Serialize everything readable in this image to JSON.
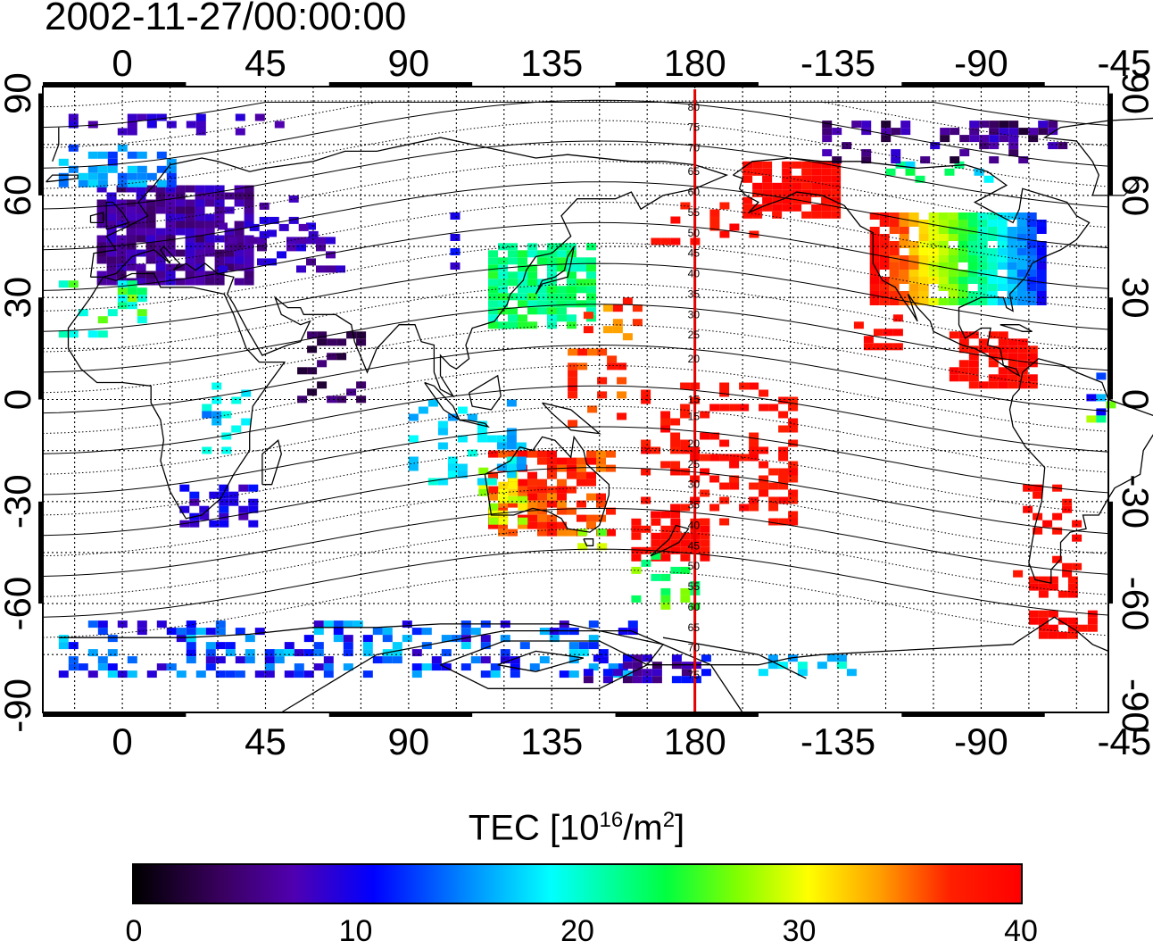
{
  "title": "2002-11-27/00:00:00",
  "lon_ticks": [
    "0",
    "45",
    "90",
    "135",
    "180",
    "-135",
    "-90",
    "-45"
  ],
  "lat_ticks": [
    "90",
    "60",
    "30",
    "0",
    "-30",
    "-60",
    "-90"
  ],
  "lon_range": [
    -25,
    310
  ],
  "lat_range": [
    -92,
    92
  ],
  "dip_labels_north": [
    "80",
    "75",
    "70",
    "65",
    "60",
    "55",
    "50",
    "45",
    "40",
    "35",
    "30",
    "25",
    "20",
    "15"
  ],
  "dip_labels_south": [
    "15",
    "20",
    "25",
    "30",
    "35",
    "40",
    "45",
    "50",
    "55",
    "60",
    "65",
    "70",
    "75"
  ],
  "colorbar": {
    "label_main": "TEC  [10",
    "label_exp": "16",
    "label_mid": "/m",
    "label_exp2": "2",
    "label_end": "]",
    "ticks": [
      "0",
      "10",
      "20",
      "30",
      "40"
    ],
    "range": [
      0,
      40
    ]
  },
  "colors": {
    "meridian": "#e00000",
    "frame": "#000000"
  },
  "chart_data": {
    "type": "heatmap",
    "title": "2002-11-27/00:00:00",
    "xlabel": "",
    "ylabel": "",
    "x_ticks": [
      "0",
      "45",
      "90",
      "135",
      "180",
      "-135",
      "-90",
      "-45"
    ],
    "y_ticks": [
      "90",
      "60",
      "30",
      "0",
      "-30",
      "-60",
      "-90"
    ],
    "value_label": "TEC [10^16/m^2]",
    "value_range": [
      0,
      40
    ],
    "regions": [
      {
        "lon": [
          -10,
          40
        ],
        "lat": [
          35,
          65
        ],
        "tec": 6
      },
      {
        "lon": [
          -125,
          -70
        ],
        "lat": [
          30,
          55
        ],
        "tec": 30
      },
      {
        "lon": [
          -125,
          -100
        ],
        "lat": [
          35,
          55
        ],
        "tec": 38
      },
      {
        "lon": [
          -95,
          -70
        ],
        "lat": [
          35,
          48
        ],
        "tec": 10
      },
      {
        "lon": [
          -165,
          -125
        ],
        "lat": [
          55,
          70
        ],
        "tec": 40
      },
      {
        "lon": [
          120,
          145
        ],
        "lat": [
          28,
          45
        ],
        "tec": 23
      },
      {
        "lon": [
          115,
          150
        ],
        "lat": [
          -40,
          -15
        ],
        "tec": 38
      },
      {
        "lon": [
          165,
          180
        ],
        "lat": [
          -47,
          -35
        ],
        "tec": 39
      },
      {
        "lon": [
          18,
          35
        ],
        "lat": [
          -35,
          -25
        ],
        "tec": 9
      },
      {
        "lon": [
          -100,
          -80
        ],
        "lat": [
          5,
          20
        ],
        "tec": 40
      },
      {
        "lon": [
          -75,
          -60
        ],
        "lat": [
          -60,
          -40
        ],
        "tec": 40
      },
      {
        "lon": [
          -20,
          180
        ],
        "lat": [
          -80,
          -65
        ],
        "tec": 12
      }
    ]
  }
}
